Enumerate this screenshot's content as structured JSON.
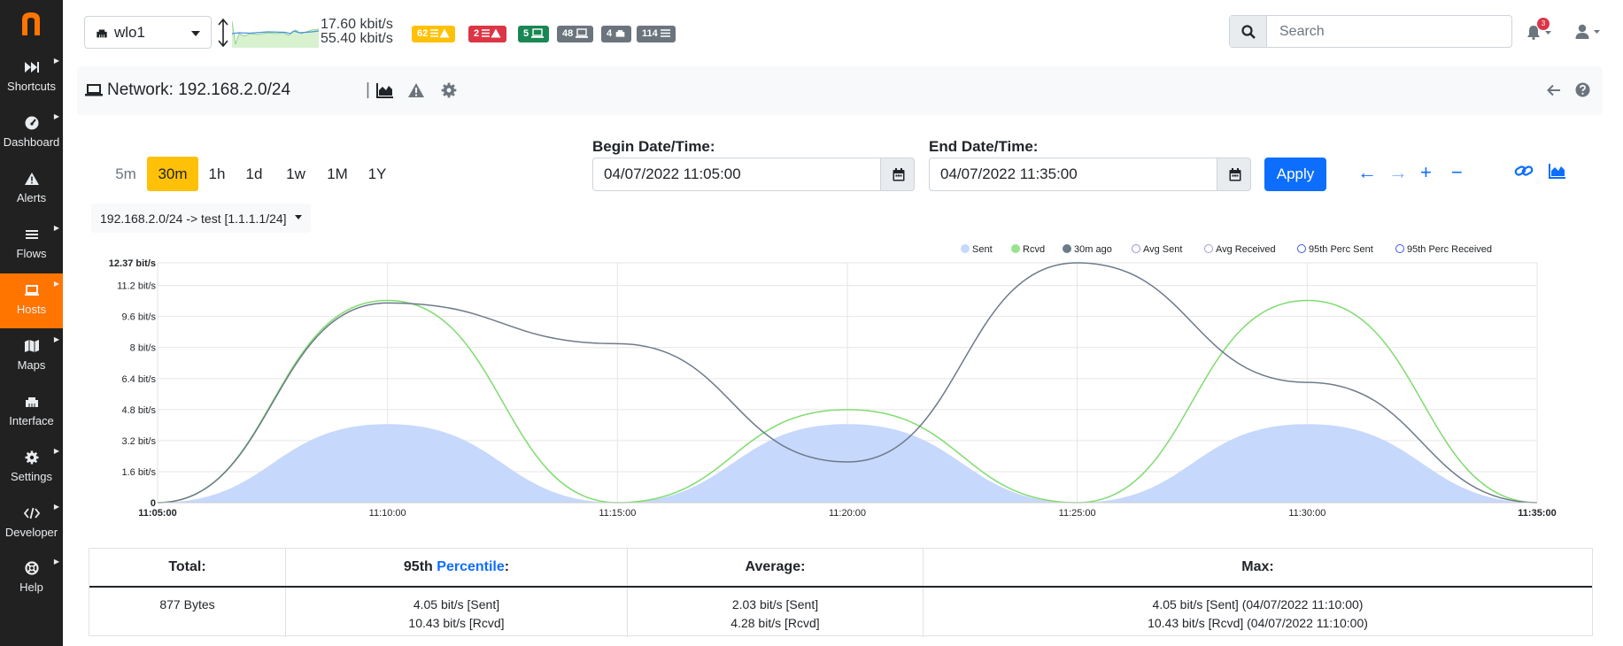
{
  "sidebar": {
    "logo_icon": "ntopng-logo",
    "accent": "#ff7500",
    "items": [
      {
        "label": "Shortcuts",
        "icon": "fast-forward-icon"
      },
      {
        "label": "Dashboard",
        "icon": "gauge-icon"
      },
      {
        "label": "Alerts",
        "icon": "warning-icon"
      },
      {
        "label": "Flows",
        "icon": "list-icon"
      },
      {
        "label": "Hosts",
        "icon": "laptop-icon",
        "active": true
      },
      {
        "label": "Maps",
        "icon": "map-icon"
      },
      {
        "label": "Interface",
        "icon": "ethernet-icon"
      },
      {
        "label": "Settings",
        "icon": "gear-icon"
      },
      {
        "label": "Developer",
        "icon": "code-icon"
      },
      {
        "label": "Help",
        "icon": "lifebuoy-icon"
      }
    ]
  },
  "topbar": {
    "interface": "wlo1",
    "rate_up": "17.60 kbit/s",
    "rate_down": "55.40 kbit/s",
    "badges": [
      {
        "text": "62",
        "color": "#ffc107",
        "text_color": "#ffffff",
        "icon": "list-warning-icon"
      },
      {
        "text": "2",
        "color": "#dc3545",
        "text_color": "#ffffff",
        "icon": "list-warning-icon"
      },
      {
        "text": "5",
        "color": "#198754",
        "text_color": "#ffffff",
        "icon": "laptop-icon"
      },
      {
        "text": "48",
        "color": "#6c757d",
        "text_color": "#ffffff",
        "icon": "laptop-icon"
      },
      {
        "text": "4",
        "color": "#6c757d",
        "text_color": "#ffffff",
        "icon": "ethernet-icon"
      },
      {
        "text": "114",
        "color": "#6c757d",
        "text_color": "#ffffff",
        "icon": "list-icon"
      }
    ],
    "search_placeholder": "Search",
    "notifications_count": "3"
  },
  "header": {
    "title": "Network: 192.168.2.0/24",
    "separator": "|"
  },
  "controls": {
    "ranges": [
      {
        "label": "5m",
        "muted": true
      },
      {
        "label": "30m",
        "active": true
      },
      {
        "label": "1h"
      },
      {
        "label": "1d"
      },
      {
        "label": "1w"
      },
      {
        "label": "1M"
      },
      {
        "label": "1Y"
      }
    ],
    "begin_label": "Begin Date/Time:",
    "begin_value": "04/07/2022 11:05:00",
    "end_label": "End Date/Time:",
    "end_value": "04/07/2022 11:35:00",
    "apply_label": "Apply",
    "nav_icons": {
      "back": "←",
      "forward": "→",
      "zoom_in": "+",
      "zoom_out": "−"
    },
    "flow_filter": "192.168.2.0/24 -> test [1.1.1.1/24]"
  },
  "chart_data": {
    "type": "area",
    "x": [
      "11:05:00",
      "11:10:00",
      "11:15:00",
      "11:20:00",
      "11:25:00",
      "11:30:00",
      "11:35:00"
    ],
    "ylim": [
      0,
      12.37
    ],
    "y_ticks": [
      "0",
      "1.6 bit/s",
      "3.2 bit/s",
      "4.8 bit/s",
      "6.4 bit/s",
      "8 bit/s",
      "9.6 bit/s",
      "11.2 bit/s",
      "12.37 bit/s"
    ],
    "y_tick_values": [
      0,
      1.6,
      3.2,
      4.8,
      6.4,
      8,
      9.6,
      11.2,
      12.37
    ],
    "grid": true,
    "legend_position": "top-right",
    "legend": [
      {
        "name": "Sent",
        "color": "#c6d8fb",
        "style": "filled"
      },
      {
        "name": "Rcvd",
        "color": "#98e38e",
        "style": "filled"
      },
      {
        "name": "30m ago",
        "color": "#6c7a89",
        "style": "filled"
      },
      {
        "name": "Avg Sent",
        "color": "#9a8fd6",
        "style": "hollow"
      },
      {
        "name": "Avg Received",
        "color": "#a79bd9",
        "style": "hollow"
      },
      {
        "name": "95th Perc Sent",
        "color": "#3a57e8",
        "style": "hollow"
      },
      {
        "name": "95th Perc Received",
        "color": "#3a57e8",
        "style": "hollow"
      }
    ],
    "series": [
      {
        "name": "Sent",
        "type": "area",
        "color": "#c6d8fb",
        "values": [
          0,
          4.05,
          0,
          4.05,
          0,
          4.05,
          0
        ]
      },
      {
        "name": "Rcvd",
        "type": "line",
        "color": "#7fdc6f",
        "values": [
          0,
          10.43,
          0,
          4.8,
          0,
          10.43,
          0
        ]
      },
      {
        "name": "30m ago",
        "type": "line",
        "color": "#6c7a89",
        "values": [
          0,
          10.3,
          8.2,
          2.1,
          12.37,
          6.2,
          0
        ]
      }
    ]
  },
  "stats": {
    "headers": {
      "total": "Total:",
      "percentile_prefix": "95th",
      "percentile_link": "Percentile",
      "percentile_suffix": ":",
      "average": "Average:",
      "max": "Max:"
    },
    "total": "877 Bytes",
    "p95_sent": "4.05 bit/s [Sent]",
    "p95_rcvd": "10.43 bit/s [Rcvd]",
    "avg_sent": "2.03 bit/s [Sent]",
    "avg_rcvd": "4.28 bit/s [Rcvd]",
    "max_sent": "4.05 bit/s [Sent] (04/07/2022 11:10:00)",
    "max_rcvd": "10.43 bit/s [Rcvd] (04/07/2022 11:10:00)"
  }
}
